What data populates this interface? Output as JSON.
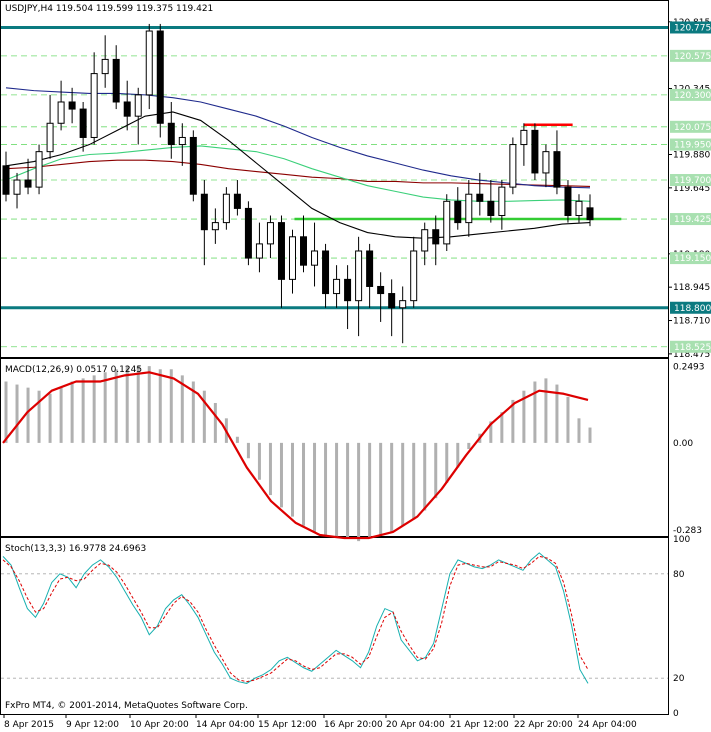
{
  "colors": {
    "background": "#ffffff",
    "candle_body": "#000000",
    "ma_blue": "#1f2a8c",
    "ma_red": "#8b0000",
    "ma_green": "#3cd07a",
    "ma_black": "#000000",
    "hline_teal": "#0b7a80",
    "hline_green": "#33cc33",
    "hline_red": "#ff0000",
    "macd_bars": "#b0b0b0",
    "macd_signal": "#dd0000",
    "stoch_main": "#18b0b0",
    "stoch_signal": "#dd0000",
    "label_teal_bg": "#0b7a80",
    "label_light_bg": "#a8e0b0"
  },
  "chart_data": [
    {
      "type": "candlestick",
      "title": "USDJPY,H4  119.504 119.599 119.375 119.421",
      "symbol": "USDJPY",
      "timeframe": "H4",
      "ohlc_readout": "119.504 119.599 119.375 119.421",
      "ylim": [
        118.46,
        120.87
      ],
      "y_ticks": [
        "120.815",
        "120.345",
        "119.880",
        "119.645",
        "119.180",
        "118.945",
        "118.710",
        "118.475"
      ],
      "price_labels": [
        {
          "text": "120.775",
          "value": 120.775,
          "style": "teal"
        },
        {
          "text": "120.575",
          "value": 120.575,
          "style": "light"
        },
        {
          "text": "120.300",
          "value": 120.3,
          "style": "light"
        },
        {
          "text": "120.075",
          "value": 120.075,
          "style": "light"
        },
        {
          "text": "119.950",
          "value": 119.95,
          "style": "light"
        },
        {
          "text": "119.700",
          "value": 119.7,
          "style": "light"
        },
        {
          "text": "119.425",
          "value": 119.425,
          "style": "light"
        },
        {
          "text": "119.150",
          "value": 119.15,
          "style": "light"
        },
        {
          "text": "118.800",
          "value": 118.8,
          "style": "teal"
        },
        {
          "text": "118.525",
          "value": 118.525,
          "style": "light"
        }
      ],
      "hlines": [
        {
          "value": 120.775,
          "style": "teal",
          "from": 0,
          "to": 1
        },
        {
          "value": 118.8,
          "style": "teal",
          "from": 0,
          "to": 1
        },
        {
          "value": 119.425,
          "style": "green",
          "from": 0.44,
          "to": 0.93
        },
        {
          "value": 120.09,
          "style": "red",
          "from": 0.784,
          "to": 0.857
        }
      ],
      "dashed_levels": [
        120.575,
        120.3,
        120.075,
        119.95,
        119.7,
        119.425,
        119.15,
        118.525
      ],
      "candles": [
        [
          119.8,
          119.9,
          119.55,
          119.6
        ],
        [
          119.6,
          119.75,
          119.5,
          119.7
        ],
        [
          119.7,
          119.85,
          119.6,
          119.65
        ],
        [
          119.65,
          119.95,
          119.6,
          119.9
        ],
        [
          119.9,
          120.3,
          119.85,
          120.1
        ],
        [
          120.1,
          120.4,
          120.05,
          120.25
        ],
        [
          120.25,
          120.35,
          120.1,
          120.2
        ],
        [
          120.2,
          120.25,
          119.9,
          120.0
        ],
        [
          120.0,
          120.6,
          119.95,
          120.45
        ],
        [
          120.45,
          120.72,
          120.35,
          120.55
        ],
        [
          120.55,
          120.65,
          120.2,
          120.25
        ],
        [
          120.25,
          120.4,
          120.05,
          120.15
        ],
        [
          120.15,
          120.35,
          119.95,
          120.3
        ],
        [
          120.3,
          120.8,
          120.2,
          120.75
        ],
        [
          120.75,
          120.8,
          120.0,
          120.1
        ],
        [
          120.1,
          120.25,
          119.85,
          119.95
        ],
        [
          119.95,
          120.1,
          119.8,
          120.0
        ],
        [
          120.0,
          120.05,
          119.55,
          119.6
        ],
        [
          119.6,
          119.7,
          119.1,
          119.35
        ],
        [
          119.35,
          119.5,
          119.25,
          119.4
        ],
        [
          119.4,
          119.65,
          119.35,
          119.6
        ],
        [
          119.6,
          119.7,
          119.45,
          119.5
        ],
        [
          119.5,
          119.55,
          119.1,
          119.15
        ],
        [
          119.15,
          119.4,
          119.05,
          119.25
        ],
        [
          119.25,
          119.45,
          119.15,
          119.4
        ],
        [
          119.4,
          119.45,
          118.8,
          119.0
        ],
        [
          119.0,
          119.35,
          118.9,
          119.3
        ],
        [
          119.3,
          119.45,
          119.05,
          119.1
        ],
        [
          119.1,
          119.4,
          118.95,
          119.2
        ],
        [
          119.2,
          119.25,
          118.8,
          118.9
        ],
        [
          118.9,
          119.1,
          118.8,
          119.0
        ],
        [
          119.0,
          119.1,
          118.65,
          118.85
        ],
        [
          118.85,
          119.3,
          118.6,
          119.2
        ],
        [
          119.2,
          119.25,
          118.8,
          118.95
        ],
        [
          118.95,
          119.05,
          118.7,
          118.9
        ],
        [
          118.9,
          119.0,
          118.6,
          118.8
        ],
        [
          118.8,
          118.95,
          118.55,
          118.85
        ],
        [
          118.85,
          119.3,
          118.8,
          119.2
        ],
        [
          119.2,
          119.4,
          119.1,
          119.35
        ],
        [
          119.35,
          119.45,
          119.1,
          119.25
        ],
        [
          119.25,
          119.6,
          119.2,
          119.55
        ],
        [
          119.55,
          119.65,
          119.35,
          119.4
        ],
        [
          119.4,
          119.7,
          119.3,
          119.6
        ],
        [
          119.6,
          119.75,
          119.45,
          119.55
        ],
        [
          119.55,
          119.7,
          119.4,
          119.45
        ],
        [
          119.45,
          119.7,
          119.35,
          119.65
        ],
        [
          119.65,
          120.0,
          119.6,
          119.95
        ],
        [
          119.95,
          120.1,
          119.8,
          120.05
        ],
        [
          120.05,
          120.1,
          119.7,
          119.75
        ],
        [
          119.75,
          119.95,
          119.65,
          119.9
        ],
        [
          119.9,
          120.05,
          119.6,
          119.65
        ],
        [
          119.65,
          119.7,
          119.4,
          119.45
        ],
        [
          119.45,
          119.6,
          119.4,
          119.55
        ],
        [
          119.504,
          119.599,
          119.375,
          119.421
        ]
      ],
      "ma_blue": [
        120.35,
        120.33,
        120.32,
        120.31,
        120.31,
        120.3,
        120.28,
        120.25,
        120.2,
        120.15,
        120.08,
        120.0,
        119.93,
        119.87,
        119.82,
        119.77,
        119.73,
        119.7,
        119.68,
        119.66,
        119.65,
        119.645
      ],
      "ma_red": [
        119.78,
        119.79,
        119.81,
        119.83,
        119.84,
        119.84,
        119.83,
        119.81,
        119.78,
        119.76,
        119.74,
        119.72,
        119.71,
        119.69,
        119.69,
        119.68,
        119.68,
        119.675,
        119.67,
        119.665,
        119.66,
        119.655
      ],
      "ma_green": [
        119.7,
        119.78,
        119.85,
        119.88,
        119.89,
        119.91,
        119.93,
        119.94,
        119.92,
        119.9,
        119.85,
        119.78,
        119.72,
        119.66,
        119.62,
        119.58,
        119.56,
        119.55,
        119.55,
        119.555,
        119.56,
        119.55
      ],
      "ma_black": [
        119.8,
        119.83,
        119.88,
        119.95,
        120.05,
        120.15,
        120.18,
        120.12,
        119.98,
        119.82,
        119.66,
        119.5,
        119.4,
        119.33,
        119.3,
        119.29,
        119.3,
        119.32,
        119.34,
        119.36,
        119.39,
        119.4
      ]
    },
    {
      "type": "bar",
      "title": "MACD(12,26,9) 0.0517 0.1245",
      "ylim": [
        -0.3,
        0.27
      ],
      "y_ticks": [
        "0.2493",
        "0.00",
        "-0.283"
      ],
      "histogram": [
        0.2,
        0.19,
        0.18,
        0.17,
        0.16,
        0.18,
        0.2,
        0.21,
        0.22,
        0.23,
        0.24,
        0.25,
        0.25,
        0.25,
        0.24,
        0.24,
        0.22,
        0.2,
        0.17,
        0.13,
        0.08,
        0.02,
        -0.05,
        -0.12,
        -0.17,
        -0.21,
        -0.24,
        -0.27,
        -0.29,
        -0.3,
        -0.31,
        -0.31,
        -0.32,
        -0.31,
        -0.3,
        -0.29,
        -0.27,
        -0.25,
        -0.22,
        -0.18,
        -0.13,
        -0.08,
        -0.02,
        0.03,
        0.07,
        0.1,
        0.14,
        0.17,
        0.2,
        0.21,
        0.19,
        0.15,
        0.08,
        0.05
      ],
      "signal": [
        0.0,
        0.1,
        0.17,
        0.2,
        0.2,
        0.22,
        0.23,
        0.21,
        0.16,
        0.06,
        -0.08,
        -0.19,
        -0.26,
        -0.3,
        -0.31,
        -0.31,
        -0.29,
        -0.24,
        -0.15,
        -0.04,
        0.06,
        0.13,
        0.17,
        0.16,
        0.14
      ]
    },
    {
      "type": "line",
      "title": "Stoch(13,3,3) 16.9778 24.6963",
      "ylim": [
        0,
        100
      ],
      "y_ticks": [
        "100",
        "80",
        "20",
        "0"
      ],
      "levels": [
        20,
        80
      ],
      "x_labels": [
        "8 Apr 2015",
        "9 Apr 12:00",
        "10 Apr 20:00",
        "14 Apr 04:00",
        "15 Apr 12:00",
        "16 Apr 20:00",
        "20 Apr 04:00",
        "21 Apr 12:00",
        "22 Apr 20:00",
        "24 Apr 04:00"
      ],
      "main": [
        90,
        85,
        72,
        60,
        55,
        63,
        75,
        80,
        78,
        72,
        80,
        85,
        88,
        84,
        78,
        70,
        62,
        55,
        45,
        50,
        60,
        65,
        68,
        62,
        55,
        45,
        35,
        28,
        20,
        18,
        17,
        20,
        22,
        25,
        30,
        32,
        29,
        26,
        24,
        28,
        32,
        36,
        33,
        30,
        26,
        35,
        50,
        60,
        58,
        42,
        36,
        30,
        32,
        40,
        60,
        80,
        88,
        86,
        84,
        83,
        85,
        88,
        86,
        84,
        82,
        88,
        92,
        88,
        84,
        70,
        50,
        25,
        17
      ],
      "signal": [
        88,
        84,
        76,
        66,
        58,
        60,
        69,
        77,
        78,
        76,
        77,
        82,
        86,
        85,
        81,
        74,
        66,
        58,
        49,
        49,
        56,
        63,
        67,
        64,
        58,
        48,
        39,
        31,
        23,
        19,
        18,
        19,
        21,
        23,
        27,
        31,
        30,
        27,
        25,
        26,
        30,
        34,
        34,
        32,
        28,
        32,
        44,
        55,
        58,
        47,
        39,
        32,
        31,
        37,
        52,
        73,
        85,
        86,
        85,
        84,
        84,
        87,
        86,
        85,
        83,
        86,
        90,
        89,
        86,
        75,
        56,
        33,
        25
      ]
    }
  ],
  "footer": {
    "copyright": "FxPro MT4, © 2001-2014, MetaQuotes Software Corp."
  }
}
